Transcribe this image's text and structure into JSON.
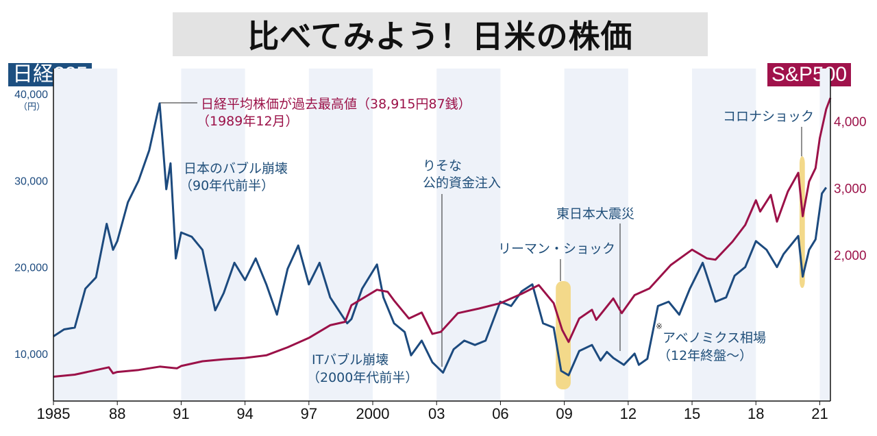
{
  "chart_data": {
    "type": "line",
    "title": "比べてみよう！日米の株価",
    "colors": {
      "nikkei": "#1c4a7e",
      "sp500": "#9b1148",
      "band": "#eef2f9",
      "highlight": "#f3d98a"
    },
    "x_ticks": [
      {
        "year": 1985,
        "label": "1985"
      },
      {
        "year": 1988,
        "label": "88"
      },
      {
        "year": 1991,
        "label": "91"
      },
      {
        "year": 1994,
        "label": "94"
      },
      {
        "year": 1997,
        "label": "97"
      },
      {
        "year": 2000,
        "label": "2000"
      },
      {
        "year": 2003,
        "label": "03"
      },
      {
        "year": 2006,
        "label": "06"
      },
      {
        "year": 2009,
        "label": "09"
      },
      {
        "year": 2012,
        "label": "12"
      },
      {
        "year": 2015,
        "label": "15"
      },
      {
        "year": 2018,
        "label": "18"
      },
      {
        "year": 2021,
        "label": "21"
      }
    ],
    "xlim": [
      1985,
      2021.5
    ],
    "shaded_periods": [
      [
        1985,
        1988
      ],
      [
        1991,
        1994
      ],
      [
        1997,
        2000
      ],
      [
        2003,
        2006
      ],
      [
        2009,
        2012
      ],
      [
        2015,
        2018
      ],
      [
        2021,
        2021.5
      ]
    ],
    "left_axis": {
      "label": "日経225",
      "unit": "（円）",
      "ticks": [
        {
          "v": 40000,
          "label": "40,000"
        },
        {
          "v": 30000,
          "label": "30,000"
        },
        {
          "v": 20000,
          "label": "20,000"
        },
        {
          "v": 10000,
          "label": "10,000"
        }
      ]
    },
    "right_axis": {
      "label": "S&P500",
      "ticks": [
        {
          "v": 4000,
          "label": "4,000"
        },
        {
          "v": 3000,
          "label": "3,000"
        },
        {
          "v": 2000,
          "label": "2,000"
        }
      ]
    },
    "series": [
      {
        "name": "日経225",
        "points": [
          [
            1985.0,
            12000
          ],
          [
            1985.5,
            12800
          ],
          [
            1986.0,
            13000
          ],
          [
            1986.5,
            17500
          ],
          [
            1987.0,
            18800
          ],
          [
            1987.5,
            25000
          ],
          [
            1987.8,
            22000
          ],
          [
            1988.0,
            23000
          ],
          [
            1988.5,
            27500
          ],
          [
            1989.0,
            30000
          ],
          [
            1989.5,
            33500
          ],
          [
            1989.99,
            38915
          ],
          [
            1990.3,
            29000
          ],
          [
            1990.5,
            32000
          ],
          [
            1990.75,
            21000
          ],
          [
            1991.0,
            24000
          ],
          [
            1991.5,
            23500
          ],
          [
            1992.0,
            22000
          ],
          [
            1992.6,
            15000
          ],
          [
            1993.0,
            17000
          ],
          [
            1993.5,
            20500
          ],
          [
            1994.0,
            18500
          ],
          [
            1994.5,
            21000
          ],
          [
            1995.0,
            18000
          ],
          [
            1995.5,
            14500
          ],
          [
            1996.0,
            19800
          ],
          [
            1996.5,
            22500
          ],
          [
            1997.0,
            18000
          ],
          [
            1997.5,
            20500
          ],
          [
            1998.0,
            16500
          ],
          [
            1998.8,
            13500
          ],
          [
            1999.0,
            14000
          ],
          [
            1999.5,
            17500
          ],
          [
            2000.2,
            20300
          ],
          [
            2000.5,
            16500
          ],
          [
            2001.0,
            13500
          ],
          [
            2001.5,
            12500
          ],
          [
            2001.8,
            9800
          ],
          [
            2002.3,
            11500
          ],
          [
            2002.8,
            9000
          ],
          [
            2003.3,
            7800
          ],
          [
            2003.8,
            10500
          ],
          [
            2004.3,
            11500
          ],
          [
            2004.8,
            11000
          ],
          [
            2005.3,
            11500
          ],
          [
            2005.99,
            16000
          ],
          [
            2006.5,
            15500
          ],
          [
            2007.0,
            17200
          ],
          [
            2007.5,
            18000
          ],
          [
            2008.0,
            13500
          ],
          [
            2008.5,
            13000
          ],
          [
            2008.85,
            8000
          ],
          [
            2009.2,
            7500
          ],
          [
            2009.7,
            10300
          ],
          [
            2010.3,
            11000
          ],
          [
            2010.7,
            9200
          ],
          [
            2011.0,
            10200
          ],
          [
            2011.3,
            9500
          ],
          [
            2011.8,
            8700
          ],
          [
            2012.3,
            10000
          ],
          [
            2012.5,
            8700
          ],
          [
            2012.9,
            9400
          ],
          [
            2013.4,
            15500
          ],
          [
            2013.9,
            16000
          ],
          [
            2014.4,
            14500
          ],
          [
            2014.9,
            17500
          ],
          [
            2015.5,
            20500
          ],
          [
            2016.1,
            16000
          ],
          [
            2016.6,
            16500
          ],
          [
            2017.0,
            19000
          ],
          [
            2017.5,
            20000
          ],
          [
            2018.0,
            23000
          ],
          [
            2018.5,
            22000
          ],
          [
            2018.99,
            20000
          ],
          [
            2019.3,
            21500
          ],
          [
            2019.99,
            23600
          ],
          [
            2020.2,
            18900
          ],
          [
            2020.5,
            22000
          ],
          [
            2020.8,
            23200
          ],
          [
            2021.1,
            28500
          ],
          [
            2021.3,
            29200
          ]
        ]
      },
      {
        "name": "S&P500",
        "points": [
          [
            1985.0,
            180
          ],
          [
            1986.0,
            210
          ],
          [
            1987.6,
            320
          ],
          [
            1987.8,
            230
          ],
          [
            1988.0,
            250
          ],
          [
            1989.0,
            280
          ],
          [
            1990.0,
            330
          ],
          [
            1990.8,
            305
          ],
          [
            1991.0,
            340
          ],
          [
            1992.0,
            410
          ],
          [
            1993.0,
            440
          ],
          [
            1994.0,
            460
          ],
          [
            1995.0,
            500
          ],
          [
            1996.0,
            620
          ],
          [
            1997.0,
            760
          ],
          [
            1998.0,
            950
          ],
          [
            1998.7,
            1000
          ],
          [
            1999.0,
            1250
          ],
          [
            2000.2,
            1480
          ],
          [
            2000.7,
            1450
          ],
          [
            2001.0,
            1320
          ],
          [
            2001.7,
            1050
          ],
          [
            2002.3,
            1140
          ],
          [
            2002.8,
            820
          ],
          [
            2003.2,
            850
          ],
          [
            2004.0,
            1130
          ],
          [
            2005.0,
            1200
          ],
          [
            2006.0,
            1280
          ],
          [
            2007.0,
            1420
          ],
          [
            2007.8,
            1550
          ],
          [
            2008.5,
            1280
          ],
          [
            2008.9,
            880
          ],
          [
            2009.2,
            700
          ],
          [
            2009.7,
            1050
          ],
          [
            2010.3,
            1180
          ],
          [
            2010.5,
            1030
          ],
          [
            2011.3,
            1350
          ],
          [
            2011.7,
            1130
          ],
          [
            2012.3,
            1400
          ],
          [
            2013.0,
            1500
          ],
          [
            2014.0,
            1850
          ],
          [
            2015.0,
            2080
          ],
          [
            2015.7,
            1950
          ],
          [
            2016.1,
            1930
          ],
          [
            2016.9,
            2200
          ],
          [
            2017.5,
            2450
          ],
          [
            2018.0,
            2820
          ],
          [
            2018.2,
            2650
          ],
          [
            2018.7,
            2900
          ],
          [
            2018.99,
            2500
          ],
          [
            2019.5,
            2950
          ],
          [
            2019.99,
            3230
          ],
          [
            2020.2,
            2580
          ],
          [
            2020.5,
            3100
          ],
          [
            2020.8,
            3300
          ],
          [
            2021.0,
            3750
          ],
          [
            2021.3,
            4180
          ],
          [
            2021.5,
            4350
          ]
        ]
      }
    ],
    "highlights": [
      {
        "from": 2008.6,
        "to": 2009.3,
        "label": "リーマン・ショック"
      },
      {
        "from": 2020.05,
        "to": 2020.3,
        "label": "コロナショック"
      }
    ],
    "annotations": {
      "peak_line1": "日経平均株価が過去最高値（38,915円87銭）",
      "peak_line2": "（1989年12月）",
      "bubble_line1": "日本のバブル崩壊",
      "bubble_line2": "（90年代前半）",
      "resona_line1": "りそな",
      "resona_line2": "公的資金注入",
      "it_line1": "ITバブル崩壊",
      "it_line2": "（2000年代前半）",
      "lehman": "リーマン・ショック",
      "quake": "東日本大震災",
      "corona": "コロナショック",
      "abe_mark": "※",
      "abe_line1": "アベノミクス相場",
      "abe_line2": "（12年終盤～）"
    }
  }
}
